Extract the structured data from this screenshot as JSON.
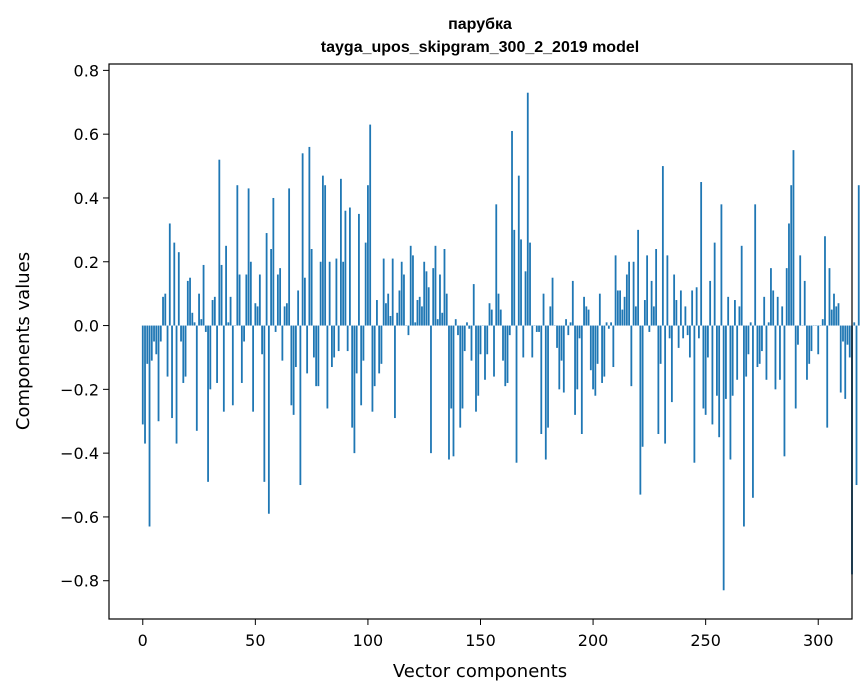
{
  "chart_data": {
    "type": "bar",
    "title": "парубка",
    "subtitle": "tayga_upos_skipgram_300_2_2019 model",
    "xlabel": "Vector components",
    "ylabel": "Components values",
    "xlim": [
      -15,
      315
    ],
    "ylim": [
      -0.92,
      0.82
    ],
    "x_ticks": [
      0,
      50,
      100,
      150,
      200,
      250,
      300
    ],
    "x_tick_labels": [
      "0",
      "50",
      "100",
      "150",
      "200",
      "250",
      "300"
    ],
    "y_ticks": [
      -0.8,
      -0.6,
      -0.4,
      -0.2,
      0.0,
      0.2,
      0.4,
      0.6,
      0.8
    ],
    "y_tick_labels": [
      "−0.8",
      "−0.6",
      "−0.4",
      "−0.2",
      "0.0",
      "0.2",
      "0.4",
      "0.6",
      "0.8"
    ],
    "bar_color": "#1f77b4",
    "grid": false,
    "values": [
      -0.31,
      -0.37,
      -0.12,
      -0.63,
      -0.11,
      -0.05,
      -0.09,
      -0.3,
      -0.05,
      0.09,
      0.1,
      -0.16,
      0.32,
      -0.29,
      0.26,
      -0.37,
      0.23,
      -0.05,
      -0.18,
      -0.16,
      0.14,
      0.15,
      0.04,
      0.01,
      -0.33,
      0.1,
      0.02,
      0.19,
      -0.02,
      -0.49,
      -0.2,
      0.08,
      0.09,
      -0.18,
      0.52,
      0.19,
      -0.27,
      0.25,
      0.01,
      0.09,
      -0.25,
      0.0,
      0.44,
      0.16,
      -0.18,
      -0.05,
      0.16,
      0.43,
      0.2,
      -0.27,
      0.07,
      0.06,
      0.16,
      -0.09,
      -0.49,
      0.29,
      -0.59,
      0.24,
      0.4,
      -0.02,
      0.16,
      0.18,
      -0.11,
      0.06,
      0.07,
      0.43,
      -0.25,
      -0.28,
      -0.13,
      0.11,
      -0.5,
      0.54,
      0.15,
      -0.15,
      0.56,
      0.24,
      -0.1,
      -0.19,
      -0.19,
      0.2,
      0.47,
      0.44,
      -0.26,
      0.2,
      -0.13,
      -0.1,
      0.21,
      -0.08,
      0.46,
      0.2,
      0.36,
      -0.08,
      0.37,
      -0.32,
      -0.4,
      -0.15,
      0.35,
      -0.25,
      -0.11,
      0.26,
      0.44,
      0.63,
      -0.27,
      -0.19,
      0.08,
      -0.15,
      -0.12,
      0.21,
      0.07,
      0.1,
      0.03,
      0.21,
      -0.29,
      0.04,
      0.11,
      0.2,
      0.16,
      0.0,
      -0.03,
      0.25,
      0.22,
      0.01,
      0.08,
      0.09,
      0.06,
      0.2,
      0.17,
      0.12,
      -0.4,
      0.18,
      0.25,
      0.02,
      0.16,
      0.04,
      0.24,
      0.1,
      -0.42,
      -0.26,
      -0.41,
      0.02,
      -0.03,
      -0.32,
      -0.26,
      -0.08,
      0.01,
      -0.01,
      -0.11,
      0.13,
      -0.27,
      -0.22,
      -0.09,
      0.0,
      -0.17,
      -0.09,
      0.07,
      0.05,
      -0.16,
      0.38,
      0.1,
      0.05,
      -0.11,
      -0.19,
      -0.18,
      -0.03,
      0.61,
      0.3,
      -0.43,
      0.47,
      0.27,
      -0.1,
      0.17,
      0.73,
      0.26,
      -0.1,
      0.0,
      -0.02,
      -0.02,
      -0.34,
      0.1,
      -0.42,
      -0.32,
      0.06,
      0.15,
      0.0,
      -0.07,
      -0.2,
      -0.11,
      -0.21,
      0.02,
      -0.03,
      0.01,
      0.14,
      -0.28,
      -0.2,
      -0.04,
      -0.34,
      0.09,
      0.06,
      0.05,
      -0.14,
      -0.2,
      -0.22,
      -0.12,
      0.1,
      -0.18,
      -0.16,
      0.01,
      -0.01,
      0.01,
      -0.13,
      0.22,
      0.11,
      0.11,
      0.05,
      0.09,
      0.16,
      0.2,
      -0.19,
      0.2,
      0.06,
      0.3,
      -0.53,
      -0.38,
      0.08,
      0.22,
      -0.02,
      0.14,
      0.06,
      0.24,
      -0.34,
      -0.12,
      0.5,
      -0.37,
      0.22,
      -0.04,
      -0.24,
      0.16,
      0.08,
      -0.07,
      0.11,
      -0.04,
      0.06,
      -0.03,
      -0.1,
      0.11,
      -0.43,
      0.12,
      -0.04,
      0.45,
      -0.26,
      -0.28,
      -0.1,
      0.14,
      -0.31,
      0.26,
      -0.22,
      -0.35,
      0.38,
      -0.83,
      -0.23,
      0.09,
      -0.42,
      -0.22,
      0.08,
      -0.17,
      0.06,
      0.25,
      -0.63,
      -0.16,
      -0.09,
      0.01,
      -0.54,
      0.38,
      -0.13,
      -0.12,
      -0.08,
      0.09,
      -0.17,
      0.01,
      0.18,
      0.11,
      -0.2,
      0.09,
      -0.17,
      0.06,
      -0.41,
      0.18,
      0.32,
      0.44,
      0.55,
      -0.26,
      -0.06,
      0.22,
      0.0,
      0.14,
      -0.17,
      -0.12,
      -0.08,
      0.0,
      0.0,
      -0.09,
      0.0,
      0.02,
      0.28,
      -0.32,
      0.18,
      0.05,
      0.1,
      0.06,
      0.07,
      -0.21,
      -0.05,
      -0.23,
      -0.06,
      -0.1,
      -0.78,
      0.01,
      -0.5,
      0.44
    ]
  }
}
